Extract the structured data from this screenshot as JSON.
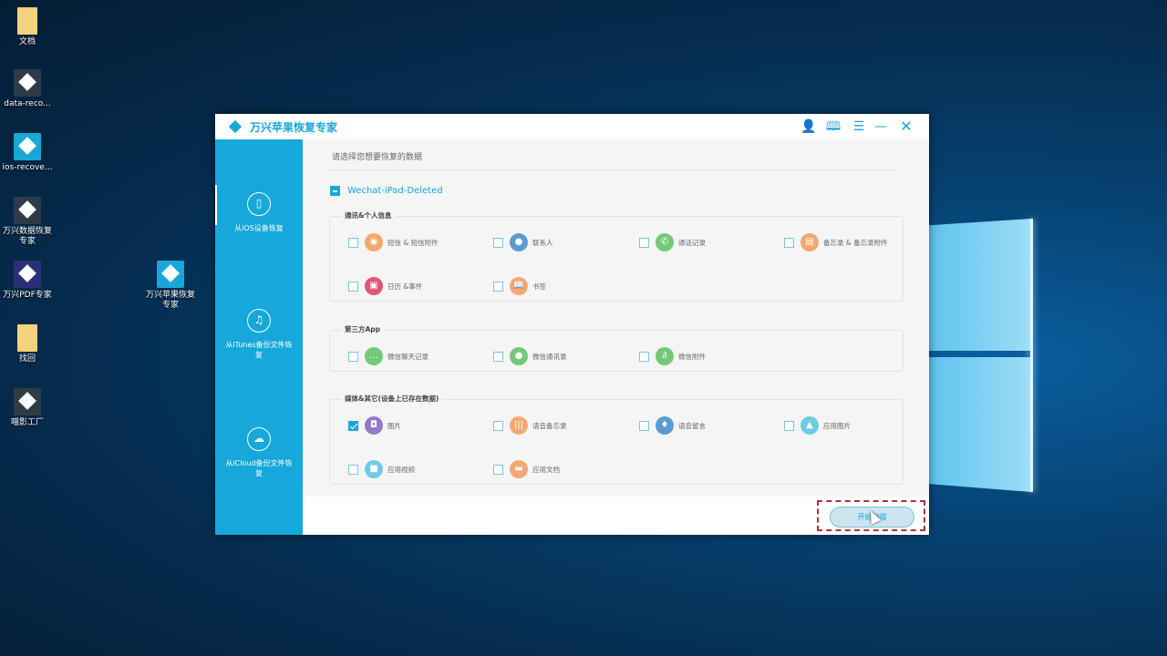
{
  "desktop": {
    "icons": [
      {
        "label": "文档",
        "kind": "folder"
      },
      {
        "label": "data-reco...",
        "kind": "dr"
      },
      {
        "label": "ios-recove...",
        "kind": "ios"
      },
      {
        "label": "万兴数据恢复专家",
        "kind": "dr"
      },
      {
        "label": "万兴PDF专家",
        "kind": "pdf"
      },
      {
        "label": "找回",
        "kind": "folder"
      },
      {
        "label": "喵影工厂",
        "kind": "film"
      },
      {
        "label": "万兴苹果恢复专家",
        "kind": "ios"
      }
    ]
  },
  "app": {
    "title": "万兴苹果恢复专家",
    "accent": "#16a8da",
    "titlebar_icons": [
      "user-icon",
      "book-icon",
      "menu-icon",
      "minimize-icon",
      "close-icon"
    ],
    "sidebar": [
      {
        "label": "从iOS设备恢复",
        "icon": "phone-restore-icon",
        "active": true
      },
      {
        "label": "从iTunes备份文件恢复",
        "icon": "music-restore-icon",
        "active": false
      },
      {
        "label": "从iCloud备份文件恢复",
        "icon": "cloud-restore-icon",
        "active": false
      }
    ],
    "prompt": "请选择您想要恢复的数据",
    "device": "Wechat-iPad-Deleted",
    "groups": [
      {
        "title": "通讯&个人信息",
        "items": [
          {
            "label": "短信 & 短信附件",
            "color": "#f2a971",
            "glyph": "◉",
            "checked": false
          },
          {
            "label": "联系人",
            "color": "#5b9bd1",
            "glyph": "●",
            "checked": false
          },
          {
            "label": "通话记录",
            "color": "#73c977",
            "glyph": "✆",
            "checked": false
          },
          {
            "label": "备忘录 & 备忘录附件",
            "color": "#f2a971",
            "glyph": "▤",
            "checked": false
          },
          {
            "label": "日历 &事件",
            "color": "#e0557a",
            "glyph": "▣",
            "checked": false
          },
          {
            "label": "书签",
            "color": "#f2a971",
            "glyph": "📖",
            "checked": false
          }
        ]
      },
      {
        "title": "第三方App",
        "items": [
          {
            "label": "微信聊天记录",
            "color": "#73c977",
            "glyph": "…",
            "checked": false
          },
          {
            "label": "微信通讯录",
            "color": "#73c977",
            "glyph": "●",
            "checked": false
          },
          {
            "label": "微信附件",
            "color": "#73c977",
            "glyph": "∂",
            "checked": false
          }
        ]
      },
      {
        "title": "媒体&其它(设备上已存在数据)",
        "items": [
          {
            "label": "图片",
            "color": "#9479c7",
            "glyph": "◘",
            "checked": true
          },
          {
            "label": "语音备忘录",
            "color": "#f2a971",
            "glyph": "|||",
            "checked": false
          },
          {
            "label": "语音留言",
            "color": "#5b9bd1",
            "glyph": "♦",
            "checked": false
          },
          {
            "label": "应用图片",
            "color": "#6fcbe3",
            "glyph": "▲",
            "checked": false
          },
          {
            "label": "应用视频",
            "color": "#6fcbe3",
            "glyph": "■",
            "checked": false
          },
          {
            "label": "应用文档",
            "color": "#f2a971",
            "glyph": "▬",
            "checked": false
          }
        ]
      }
    ],
    "start_button": "开始扫描"
  }
}
